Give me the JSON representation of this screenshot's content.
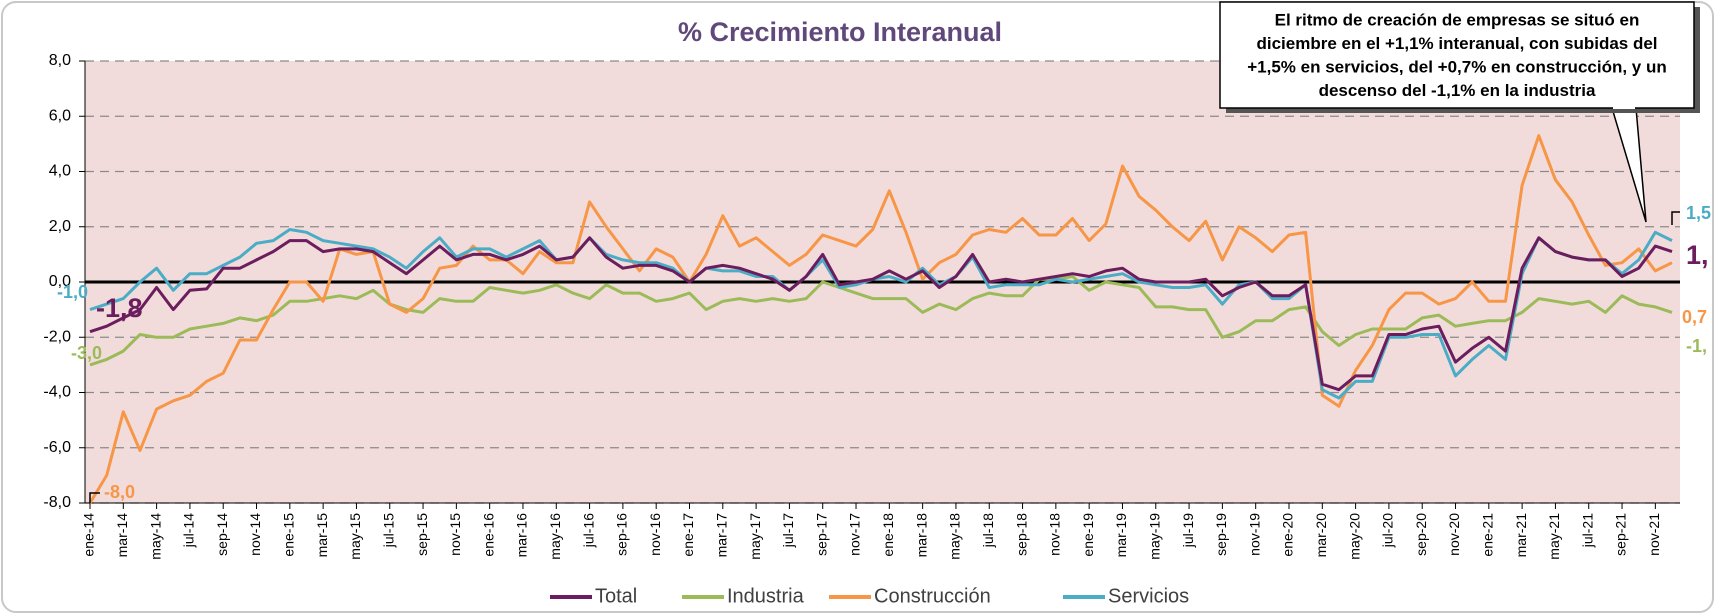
{
  "chart_data": {
    "type": "line",
    "title": "% Crecimiento Interanual",
    "annotation": [
      "El ritmo de creación de empresas se situó en",
      "diciembre en el +1,1% interanual, con subidas del",
      "+1,5% en servicios, del +0,7% en construcción, y un",
      "descenso del -1,1% en la industria"
    ],
    "categories": [
      "ene-14",
      null,
      "mar-14",
      null,
      "may-14",
      null,
      "jul-14",
      null,
      "sep-14",
      null,
      "nov-14",
      null,
      "ene-15",
      null,
      "mar-15",
      null,
      "may-15",
      null,
      "jul-15",
      null,
      "sep-15",
      null,
      "nov-15",
      null,
      "ene-16",
      null,
      "mar-16",
      null,
      "may-16",
      null,
      "jul-16",
      null,
      "sep-16",
      null,
      "nov-16",
      null,
      "ene-17",
      null,
      "mar-17",
      null,
      "may-17",
      null,
      "jul-17",
      null,
      "sep-17",
      null,
      "nov-17",
      null,
      "ene-18",
      null,
      "mar-18",
      null,
      "may-18",
      null,
      "jul-18",
      null,
      "sep-18",
      null,
      "nov-18",
      null,
      "ene-19",
      null,
      "mar-19",
      null,
      "may-19",
      null,
      "jul-19",
      null,
      "sep-19",
      null,
      "nov-19",
      null,
      "ene-20",
      null,
      "mar-20",
      null,
      "may-20",
      null,
      "jul-20",
      null,
      "sep-20",
      null,
      "nov-20",
      null,
      "ene-21",
      null,
      "mar-21",
      null,
      "may-21",
      null,
      "jul-21",
      null,
      "sep-21",
      null,
      "nov-21",
      null
    ],
    "series": [
      {
        "name": "Total",
        "color": "#6b1d5e",
        "values": [
          -1.8,
          -1.6,
          -1.3,
          -1.0,
          -0.2,
          -1.0,
          -0.3,
          -0.25,
          0.5,
          0.5,
          0.8,
          1.1,
          1.5,
          1.5,
          1.1,
          1.2,
          1.2,
          1.1,
          0.7,
          0.3,
          0.8,
          1.3,
          0.8,
          1.0,
          1.0,
          0.8,
          1.0,
          1.3,
          0.8,
          0.9,
          1.6,
          0.9,
          0.5,
          0.6,
          0.6,
          0.4,
          0.0,
          0.5,
          0.6,
          0.5,
          0.3,
          0.1,
          -0.3,
          0.2,
          1.0,
          -0.1,
          0.0,
          0.1,
          0.4,
          0.1,
          0.4,
          -0.2,
          0.2,
          1.0,
          0.0,
          0.1,
          0.0,
          0.1,
          0.2,
          0.3,
          0.2,
          0.4,
          0.5,
          0.1,
          0.0,
          0.0,
          0.0,
          0.1,
          -0.5,
          -0.2,
          0.0,
          -0.5,
          -0.5,
          -0.1,
          -3.7,
          -3.9,
          -3.4,
          -3.4,
          -1.9,
          -1.9,
          -1.7,
          -1.6,
          -2.9,
          -2.4,
          -2.0,
          -2.5,
          0.5,
          1.6,
          1.1,
          0.9,
          0.8,
          0.8,
          0.2,
          0.5,
          1.3,
          1.1
        ],
        "value_labels": [
          "-1,8",
          null,
          null,
          null,
          null,
          null,
          null,
          null,
          null,
          null,
          null,
          null,
          null,
          null,
          null,
          null,
          null,
          null,
          null,
          null,
          null,
          null,
          null,
          null,
          null,
          null,
          null,
          null,
          null,
          null,
          null,
          null,
          null,
          null,
          null,
          null,
          null,
          null,
          null,
          null,
          null,
          null,
          null,
          null,
          null,
          null,
          null,
          null,
          null,
          null,
          null,
          null,
          null,
          null,
          null,
          null,
          null,
          null,
          null,
          null,
          null,
          null,
          null,
          null,
          null,
          null,
          null,
          null,
          null,
          null,
          null,
          null,
          null,
          null,
          null,
          null,
          null,
          null,
          null,
          null,
          null,
          null,
          null,
          null,
          null,
          null,
          null,
          null,
          null,
          null,
          null,
          null,
          null,
          null,
          null,
          "1,"
        ]
      },
      {
        "name": "Industria",
        "color": "#9bbb59",
        "values": [
          -3.0,
          -2.8,
          -2.5,
          -1.9,
          -2.0,
          -2.0,
          -1.7,
          -1.6,
          -1.5,
          -1.3,
          -1.4,
          -1.2,
          -0.7,
          -0.7,
          -0.6,
          -0.5,
          -0.6,
          -0.3,
          -0.8,
          -1.0,
          -1.1,
          -0.6,
          -0.7,
          -0.7,
          -0.2,
          -0.3,
          -0.4,
          -0.3,
          -0.1,
          -0.4,
          -0.6,
          -0.1,
          -0.4,
          -0.4,
          -0.7,
          -0.6,
          -0.4,
          -1.0,
          -0.7,
          -0.6,
          -0.7,
          -0.6,
          -0.7,
          -0.6,
          0.0,
          -0.2,
          -0.4,
          -0.6,
          -0.6,
          -0.6,
          -1.1,
          -0.8,
          -1.0,
          -0.6,
          -0.4,
          -0.5,
          -0.5,
          0.1,
          0.1,
          0.2,
          -0.3,
          0.0,
          -0.1,
          -0.2,
          -0.9,
          -0.9,
          -1.0,
          -1.0,
          -2.0,
          -1.8,
          -1.4,
          -1.4,
          -1.0,
          -0.9,
          -1.8,
          -2.3,
          -1.9,
          -1.7,
          -1.7,
          -1.7,
          -1.3,
          -1.2,
          -1.6,
          -1.5,
          -1.4,
          -1.4,
          -1.1,
          -0.6,
          -0.7,
          -0.8,
          -0.7,
          -1.1,
          -0.5,
          -0.8,
          -0.9,
          -1.1
        ],
        "value_labels": [
          "-3,0",
          null,
          null,
          null,
          null,
          null,
          null,
          null,
          null,
          null,
          null,
          null,
          null,
          null,
          null,
          null,
          null,
          null,
          null,
          null,
          null,
          null,
          null,
          null,
          null,
          null,
          null,
          null,
          null,
          null,
          null,
          null,
          null,
          null,
          null,
          null,
          null,
          null,
          null,
          null,
          null,
          null,
          null,
          null,
          null,
          null,
          null,
          null,
          null,
          null,
          null,
          null,
          null,
          null,
          null,
          null,
          null,
          null,
          null,
          null,
          null,
          null,
          null,
          null,
          null,
          null,
          null,
          null,
          null,
          null,
          null,
          null,
          null,
          null,
          null,
          null,
          null,
          null,
          null,
          null,
          null,
          null,
          null,
          null,
          null,
          null,
          null,
          null,
          null,
          null,
          null,
          null,
          null,
          null,
          null,
          "-1,"
        ]
      },
      {
        "name": "Construcción",
        "color": "#f79646",
        "values": [
          -8.0,
          -7.0,
          -4.7,
          -6.1,
          -4.6,
          -4.3,
          -4.1,
          -3.6,
          -3.3,
          -2.1,
          -2.1,
          -1.0,
          0.0,
          0.0,
          -0.7,
          1.2,
          1.0,
          1.1,
          -0.8,
          -1.1,
          -0.6,
          0.5,
          0.6,
          1.3,
          0.8,
          0.8,
          0.3,
          1.1,
          0.7,
          0.7,
          2.9,
          2.0,
          1.2,
          0.4,
          1.2,
          0.9,
          0.0,
          1.0,
          2.4,
          1.3,
          1.6,
          1.1,
          0.6,
          1.0,
          1.7,
          1.5,
          1.3,
          1.9,
          3.3,
          1.8,
          0.1,
          0.7,
          1.0,
          1.7,
          1.9,
          1.8,
          2.3,
          1.7,
          1.7,
          2.3,
          1.5,
          2.1,
          4.2,
          3.1,
          2.6,
          2.0,
          1.5,
          2.2,
          0.8,
          2.0,
          1.6,
          1.1,
          1.7,
          1.8,
          -4.1,
          -4.5,
          -3.2,
          -2.3,
          -1.0,
          -0.4,
          -0.4,
          -0.8,
          -0.6,
          0.0,
          -0.7,
          -0.7,
          3.5,
          5.3,
          3.7,
          2.9,
          1.7,
          0.6,
          0.7,
          1.2,
          0.4,
          0.7
        ],
        "value_labels": [
          "-8,0",
          null,
          null,
          null,
          null,
          null,
          null,
          null,
          null,
          null,
          null,
          null,
          null,
          null,
          null,
          null,
          null,
          null,
          null,
          null,
          null,
          null,
          null,
          null,
          null,
          null,
          null,
          null,
          null,
          null,
          null,
          null,
          null,
          null,
          null,
          null,
          null,
          null,
          null,
          null,
          null,
          null,
          null,
          null,
          null,
          null,
          null,
          null,
          null,
          null,
          null,
          null,
          null,
          null,
          null,
          null,
          null,
          null,
          null,
          null,
          null,
          null,
          null,
          null,
          null,
          null,
          null,
          null,
          null,
          null,
          null,
          null,
          null,
          null,
          null,
          null,
          null,
          null,
          null,
          null,
          null,
          null,
          null,
          null,
          null,
          null,
          null,
          null,
          null,
          null,
          null,
          null,
          null,
          null,
          null,
          "0,7"
        ]
      },
      {
        "name": "Servicios",
        "color": "#4bacc6",
        "values": [
          -1.0,
          -0.8,
          -0.6,
          0.0,
          0.5,
          -0.3,
          0.3,
          0.3,
          0.6,
          0.9,
          1.4,
          1.5,
          1.9,
          1.8,
          1.5,
          1.4,
          1.3,
          1.2,
          0.9,
          0.5,
          1.1,
          1.6,
          0.9,
          1.2,
          1.2,
          0.9,
          1.2,
          1.5,
          0.8,
          0.9,
          1.6,
          1.0,
          0.8,
          0.7,
          0.7,
          0.5,
          0.0,
          0.5,
          0.4,
          0.4,
          0.2,
          0.2,
          -0.3,
          0.2,
          0.8,
          -0.2,
          -0.1,
          0.1,
          0.2,
          0.0,
          0.5,
          -0.1,
          0.2,
          0.9,
          -0.2,
          -0.1,
          -0.1,
          -0.1,
          0.1,
          0.0,
          0.1,
          0.2,
          0.3,
          0.0,
          -0.1,
          -0.2,
          -0.2,
          -0.1,
          -0.8,
          -0.1,
          0.0,
          -0.6,
          -0.6,
          -0.1,
          -3.9,
          -4.2,
          -3.6,
          -3.6,
          -2.0,
          -2.0,
          -1.9,
          -1.9,
          -3.4,
          -2.8,
          -2.3,
          -2.8,
          0.3,
          1.6,
          1.1,
          0.9,
          0.8,
          0.8,
          0.3,
          0.8,
          1.8,
          1.5
        ],
        "value_labels": [
          "-1,0",
          null,
          null,
          null,
          null,
          null,
          null,
          null,
          null,
          null,
          null,
          null,
          null,
          null,
          null,
          null,
          null,
          null,
          null,
          null,
          null,
          null,
          null,
          null,
          null,
          null,
          null,
          null,
          null,
          null,
          null,
          null,
          null,
          null,
          null,
          null,
          null,
          null,
          null,
          null,
          null,
          null,
          null,
          null,
          null,
          null,
          null,
          null,
          null,
          null,
          null,
          null,
          null,
          null,
          null,
          null,
          null,
          null,
          null,
          null,
          null,
          null,
          null,
          null,
          null,
          null,
          null,
          null,
          null,
          null,
          null,
          null,
          null,
          null,
          null,
          null,
          null,
          null,
          null,
          null,
          null,
          null,
          null,
          null,
          null,
          null,
          null,
          null,
          null,
          null,
          null,
          null,
          null,
          null,
          null,
          "1,5"
        ]
      }
    ],
    "ylim": [
      -8,
      8
    ],
    "yticks": [
      {
        "value": -8,
        "label": "-8,0"
      },
      {
        "value": -6,
        "label": "-6,0"
      },
      {
        "value": -4,
        "label": "-4,0"
      },
      {
        "value": -2,
        "label": "-2,0"
      },
      {
        "value": 0,
        "label": "0,0"
      },
      {
        "value": 2,
        "label": "2,0"
      },
      {
        "value": 4,
        "label": "4,0"
      },
      {
        "value": 6,
        "label": "6,0"
      },
      {
        "value": 8,
        "label": "8,0"
      }
    ],
    "grid": true,
    "legend": "bottom"
  }
}
